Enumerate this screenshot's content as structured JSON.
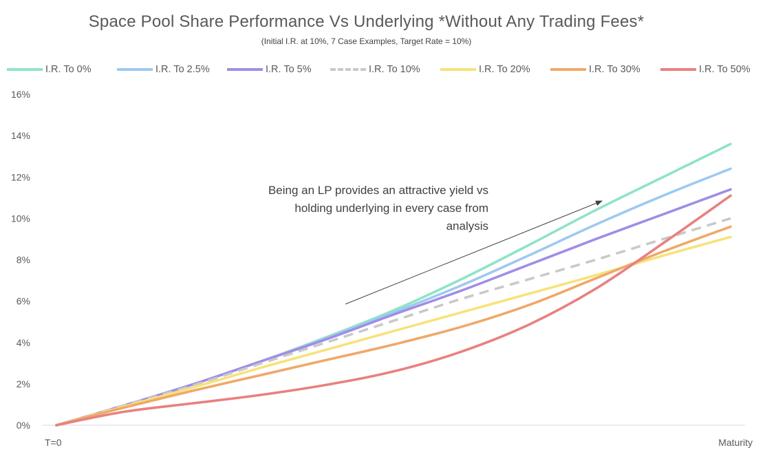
{
  "chart_data": {
    "type": "line",
    "title": "Space Pool Share Performance Vs Underlying *Without Any Trading Fees*",
    "subtitle": "(Initial I.R. at 10%, 7 Case Examples, Target Rate = 10%)",
    "xlabel": "",
    "ylabel": "",
    "x_tick_labels": [
      "T=0",
      "Maturity"
    ],
    "y_ticks": [
      0,
      2,
      4,
      6,
      8,
      10,
      12,
      14,
      16
    ],
    "y_tick_labels": [
      "0%",
      "2%",
      "4%",
      "6%",
      "8%",
      "10%",
      "12%",
      "14%",
      "16%"
    ],
    "ylim": [
      0,
      16
    ],
    "xlim": [
      0,
      10
    ],
    "grid": false,
    "legend_position": "top",
    "annotation": {
      "lines": [
        "Being an LP provides an attractive yield vs",
        "holding underlying in every case from",
        "analysis"
      ]
    },
    "x": [
      0,
      1,
      2,
      3,
      4,
      5,
      6,
      7,
      8,
      9,
      10
    ],
    "series": [
      {
        "name": "I.R. To 0%",
        "color": "#8fe3c6",
        "dashed": false,
        "values": [
          0,
          0.95,
          1.95,
          3.05,
          4.25,
          5.55,
          7.05,
          8.7,
          10.4,
          12.0,
          13.6
        ]
      },
      {
        "name": "I.R. To 2.5%",
        "color": "#9ec9f0",
        "dashed": false,
        "values": [
          0,
          0.95,
          1.95,
          3.05,
          4.2,
          5.45,
          6.75,
          8.2,
          9.7,
          11.1,
          12.4
        ]
      },
      {
        "name": "I.R. To 5%",
        "color": "#a08de6",
        "dashed": false,
        "values": [
          0,
          0.95,
          1.95,
          3.05,
          4.15,
          5.35,
          6.5,
          7.75,
          9.0,
          10.2,
          11.4
        ]
      },
      {
        "name": "I.R. To 10%",
        "color": "#c9c9c9",
        "dashed": true,
        "values": [
          0,
          0.95,
          1.9,
          2.95,
          4.0,
          5.05,
          6.1,
          7.05,
          8.0,
          9.0,
          10.0
        ]
      },
      {
        "name": "I.R. To 20%",
        "color": "#f7e27a",
        "dashed": false,
        "values": [
          0,
          0.9,
          1.8,
          2.75,
          3.65,
          4.55,
          5.45,
          6.35,
          7.25,
          8.2,
          9.1
        ]
      },
      {
        "name": "I.R. To 30%",
        "color": "#f0a867",
        "dashed": false,
        "values": [
          0,
          0.85,
          1.65,
          2.4,
          3.15,
          3.9,
          4.75,
          5.8,
          7.1,
          8.4,
          9.6
        ]
      },
      {
        "name": "I.R. To 50%",
        "color": "#e8817f",
        "dashed": false,
        "values": [
          0,
          0.65,
          1.05,
          1.45,
          1.95,
          2.6,
          3.55,
          4.85,
          6.6,
          8.8,
          11.1
        ]
      }
    ]
  }
}
